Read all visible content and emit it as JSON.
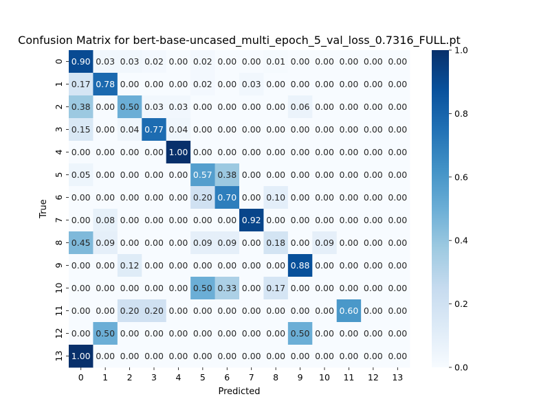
{
  "chart_data": {
    "type": "heatmap",
    "title": "Confusion Matrix for bert-base-uncased_multi_epoch_5_val_loss_0.7316_FULL.pt",
    "xlabel": "Predicted",
    "ylabel": "True",
    "x_categories": [
      "0",
      "1",
      "2",
      "3",
      "4",
      "5",
      "6",
      "7",
      "8",
      "9",
      "10",
      "11",
      "12",
      "13"
    ],
    "y_categories": [
      "0",
      "1",
      "2",
      "3",
      "4",
      "5",
      "6",
      "7",
      "8",
      "9",
      "10",
      "11",
      "12",
      "13"
    ],
    "values": [
      [
        0.9,
        0.03,
        0.03,
        0.02,
        0.0,
        0.02,
        0.0,
        0.0,
        0.01,
        0.0,
        0.0,
        0.0,
        0.0,
        0.0
      ],
      [
        0.17,
        0.78,
        0.0,
        0.0,
        0.0,
        0.02,
        0.0,
        0.03,
        0.0,
        0.0,
        0.0,
        0.0,
        0.0,
        0.0
      ],
      [
        0.38,
        0.0,
        0.5,
        0.03,
        0.03,
        0.0,
        0.0,
        0.0,
        0.0,
        0.06,
        0.0,
        0.0,
        0.0,
        0.0
      ],
      [
        0.15,
        0.0,
        0.04,
        0.77,
        0.04,
        0.0,
        0.0,
        0.0,
        0.0,
        0.0,
        0.0,
        0.0,
        0.0,
        0.0
      ],
      [
        0.0,
        0.0,
        0.0,
        0.0,
        1.0,
        0.0,
        0.0,
        0.0,
        0.0,
        0.0,
        0.0,
        0.0,
        0.0,
        0.0
      ],
      [
        0.05,
        0.0,
        0.0,
        0.0,
        0.0,
        0.57,
        0.38,
        0.0,
        0.0,
        0.0,
        0.0,
        0.0,
        0.0,
        0.0
      ],
      [
        0.0,
        0.0,
        0.0,
        0.0,
        0.0,
        0.2,
        0.7,
        0.0,
        0.1,
        0.0,
        0.0,
        0.0,
        0.0,
        0.0
      ],
      [
        0.0,
        0.08,
        0.0,
        0.0,
        0.0,
        0.0,
        0.0,
        0.92,
        0.0,
        0.0,
        0.0,
        0.0,
        0.0,
        0.0
      ],
      [
        0.45,
        0.09,
        0.0,
        0.0,
        0.0,
        0.09,
        0.09,
        0.0,
        0.18,
        0.0,
        0.09,
        0.0,
        0.0,
        0.0
      ],
      [
        0.0,
        0.0,
        0.12,
        0.0,
        0.0,
        0.0,
        0.0,
        0.0,
        0.0,
        0.88,
        0.0,
        0.0,
        0.0,
        0.0
      ],
      [
        0.0,
        0.0,
        0.0,
        0.0,
        0.0,
        0.5,
        0.33,
        0.0,
        0.17,
        0.0,
        0.0,
        0.0,
        0.0,
        0.0
      ],
      [
        0.0,
        0.0,
        0.2,
        0.2,
        0.0,
        0.0,
        0.0,
        0.0,
        0.0,
        0.0,
        0.0,
        0.6,
        0.0,
        0.0
      ],
      [
        0.0,
        0.5,
        0.0,
        0.0,
        0.0,
        0.0,
        0.0,
        0.0,
        0.0,
        0.5,
        0.0,
        0.0,
        0.0,
        0.0
      ],
      [
        1.0,
        0.0,
        0.0,
        0.0,
        0.0,
        0.0,
        0.0,
        0.0,
        0.0,
        0.0,
        0.0,
        0.0,
        0.0,
        0.0
      ]
    ],
    "value_range": [
      0,
      1
    ],
    "colormap": "Blues",
    "colorbar_ticks": [
      "0.0",
      "0.2",
      "0.4",
      "0.6",
      "0.8",
      "1.0"
    ],
    "grid": false
  }
}
